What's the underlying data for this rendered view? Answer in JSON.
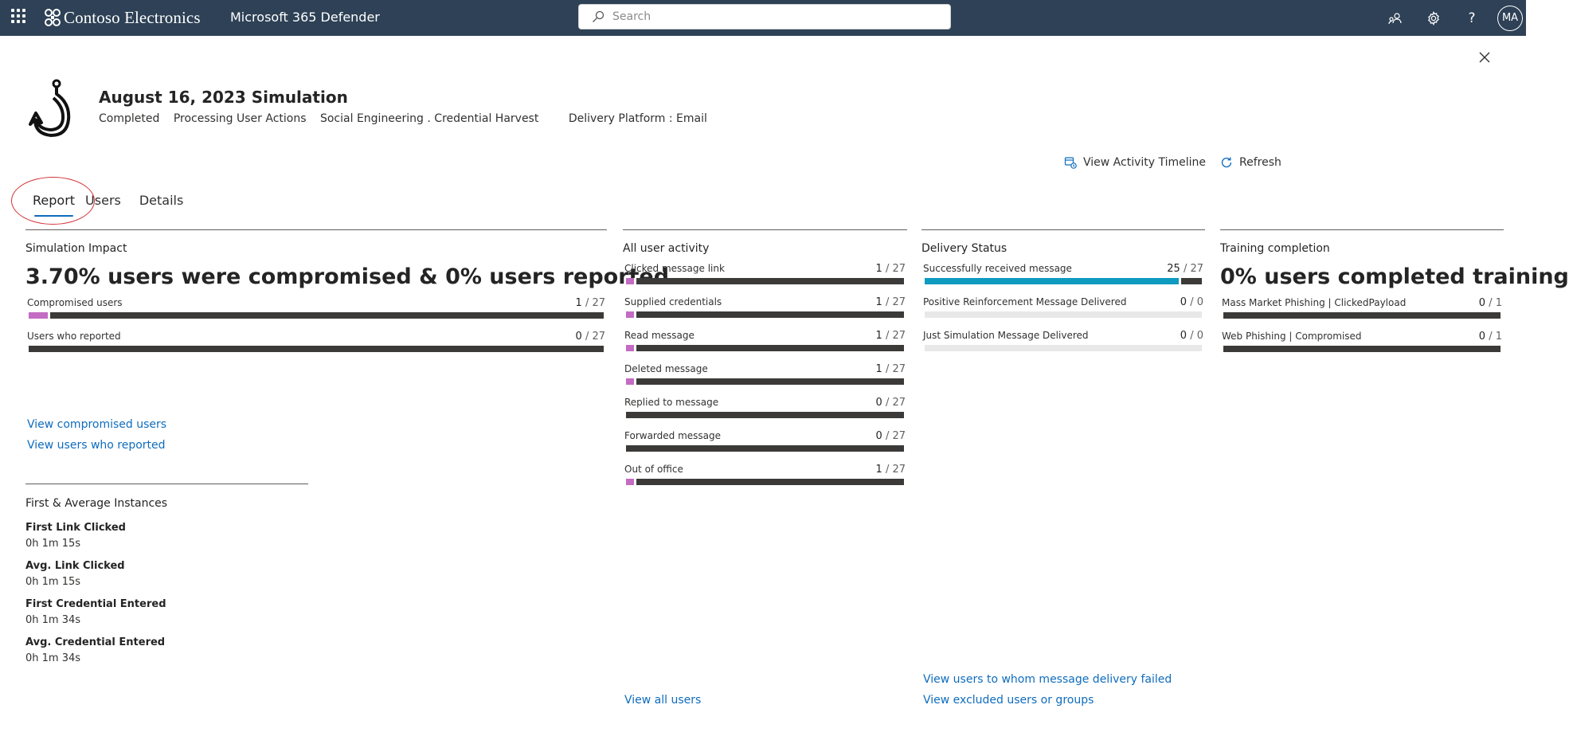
{
  "topbar": {
    "brand": "Contoso Electronics",
    "app_name": "Microsoft 365 Defender",
    "search_placeholder": "Search",
    "avatar_initials": "MA",
    "icons": [
      "app-launcher-icon",
      "community-icon",
      "settings-icon",
      "help-icon"
    ]
  },
  "header": {
    "title": "August 16, 2023 Simulation",
    "status": "Completed",
    "processing": "Processing User Actions",
    "technique": "Social Engineering . Credential Harvest",
    "platform": "Delivery Platform : Email",
    "icon": "phishing-hook-icon"
  },
  "actions": {
    "timeline": "View Activity Timeline",
    "refresh": "Refresh"
  },
  "tabs": [
    {
      "label": "Report",
      "active": true
    },
    {
      "label": "Users",
      "active": false
    },
    {
      "label": "Details",
      "active": false
    }
  ],
  "colors": {
    "accent": "#0f6cbd",
    "bar_track": "#3b3a39",
    "bar_fill": "#c46bc3",
    "delivered_fill": "#0e9bbf",
    "topbar": "#2e4156"
  },
  "simulation_impact": {
    "title": "Simulation Impact",
    "headline": "3.70% users were compromised & 0% users reported",
    "metrics": [
      {
        "label": "Compromised users",
        "count": "1",
        "total": "27",
        "fraction": 0.037
      },
      {
        "label": "Users who reported",
        "count": "0",
        "total": "27",
        "fraction": 0
      }
    ],
    "links": [
      "View compromised users",
      "View users who reported"
    ]
  },
  "instances": {
    "title": "First & Average Instances",
    "items": [
      {
        "label": "First Link Clicked",
        "value": "0h 1m 15s"
      },
      {
        "label": "Avg. Link Clicked",
        "value": "0h 1m 15s"
      },
      {
        "label": "First Credential Entered",
        "value": "0h 1m 34s"
      },
      {
        "label": "Avg. Credential Entered",
        "value": "0h 1m 34s"
      }
    ]
  },
  "user_activity": {
    "title": "All user activity",
    "metrics": [
      {
        "label": "Clicked message link",
        "count": "1",
        "total": "27",
        "fraction": 0.037
      },
      {
        "label": "Supplied credentials",
        "count": "1",
        "total": "27",
        "fraction": 0.037
      },
      {
        "label": "Read message",
        "count": "1",
        "total": "27",
        "fraction": 0.037
      },
      {
        "label": "Deleted message",
        "count": "1",
        "total": "27",
        "fraction": 0.037
      },
      {
        "label": "Replied to message",
        "count": "0",
        "total": "27",
        "fraction": 0
      },
      {
        "label": "Forwarded message",
        "count": "0",
        "total": "27",
        "fraction": 0
      },
      {
        "label": "Out of office",
        "count": "1",
        "total": "27",
        "fraction": 0.037
      }
    ],
    "link": "View all users"
  },
  "delivery_status": {
    "title": "Delivery Status",
    "metrics": [
      {
        "label": "Successfully received message",
        "count": "25",
        "total": "27",
        "fraction": 0.926
      },
      {
        "label": "Positive Reinforcement Message Delivered",
        "count": "0",
        "total": "0",
        "fraction": 0
      },
      {
        "label": "Just Simulation Message Delivered",
        "count": "0",
        "total": "0",
        "fraction": 0
      }
    ],
    "links": [
      "View users to whom message delivery failed",
      "View excluded users or groups"
    ]
  },
  "training": {
    "title": "Training completion",
    "headline": "0% users completed training",
    "metrics": [
      {
        "label": "Mass Market Phishing | ClickedPayload",
        "count": "0",
        "total": "1",
        "fraction": 0
      },
      {
        "label": "Web Phishing | Compromised",
        "count": "0",
        "total": "1",
        "fraction": 0
      }
    ]
  }
}
